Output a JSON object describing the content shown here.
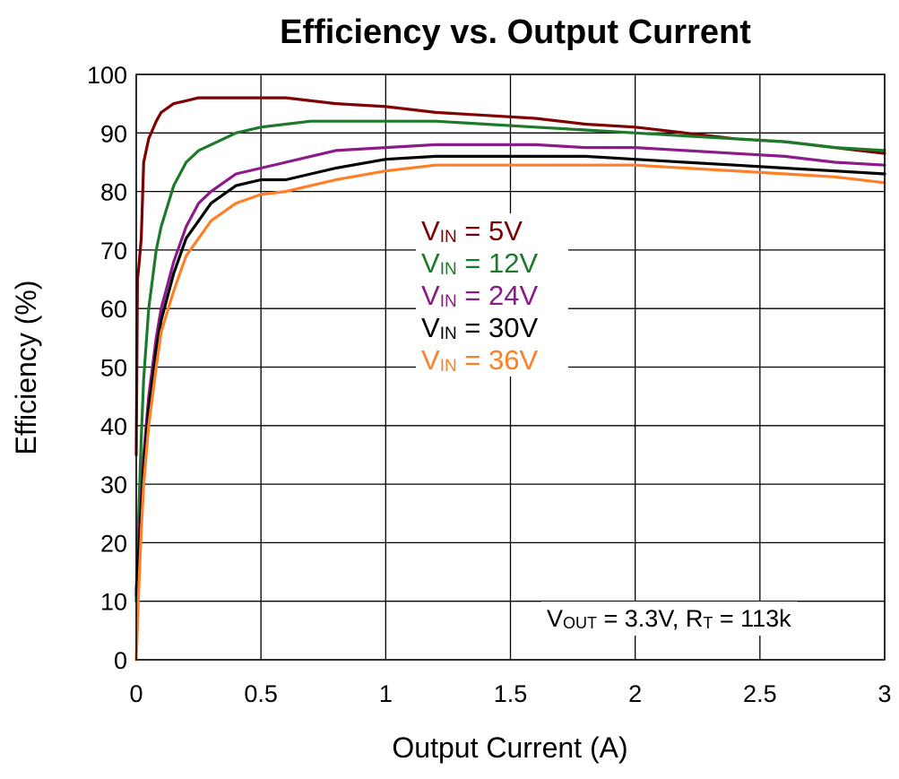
{
  "chart_data": {
    "type": "line",
    "title": "Efficiency vs. Output Current",
    "xlabel": "Output Current (A)",
    "ylabel": "Efficiency (%)",
    "xlim": [
      0,
      3
    ],
    "ylim": [
      0,
      100
    ],
    "x_ticks": [
      "0",
      "0.5",
      "1",
      "1.5",
      "2",
      "2.5",
      "3"
    ],
    "y_ticks": [
      "0",
      "10",
      "20",
      "30",
      "40",
      "50",
      "60",
      "70",
      "80",
      "90",
      "100"
    ],
    "grid": true,
    "legend_position": "center",
    "annotation": {
      "v": "V",
      "sub": "OUT",
      "mid": " = 3.3V,  R",
      "sub2": "T",
      "end": " = 113k"
    },
    "series": [
      {
        "name": "5V",
        "legend_prefix": "V",
        "legend_sub": "IN",
        "legend_eq": " =  5V",
        "color": "#7f0000",
        "x": [
          0,
          0.005,
          0.01,
          0.02,
          0.03,
          0.05,
          0.08,
          0.1,
          0.15,
          0.2,
          0.25,
          0.3,
          0.4,
          0.5,
          0.6,
          0.7,
          0.8,
          1.0,
          1.2,
          1.4,
          1.6,
          1.8,
          2.0,
          2.2,
          2.4,
          2.6,
          2.8,
          3.0
        ],
        "y": [
          35,
          65,
          67,
          72,
          85,
          89,
          92,
          93.5,
          95,
          95.5,
          96,
          96,
          96,
          96,
          96,
          95.5,
          95,
          94.5,
          93.5,
          93,
          92.5,
          91.5,
          91,
          90,
          89,
          88.5,
          87.5,
          86.5
        ]
      },
      {
        "name": "12V",
        "legend_prefix": "V",
        "legend_sub": "IN",
        "legend_eq": " = 12V",
        "color": "#1c7a2a",
        "x": [
          0,
          0.01,
          0.02,
          0.03,
          0.05,
          0.08,
          0.1,
          0.15,
          0.2,
          0.25,
          0.3,
          0.4,
          0.5,
          0.6,
          0.7,
          0.8,
          1.0,
          1.2,
          1.4,
          1.6,
          1.8,
          2.0,
          2.2,
          2.4,
          2.6,
          2.8,
          3.0
        ],
        "y": [
          10,
          25,
          38,
          48,
          60,
          70,
          74,
          81,
          85,
          87,
          88,
          90,
          91,
          91.5,
          92,
          92,
          92,
          92,
          91.5,
          91,
          90.5,
          90,
          89.5,
          89,
          88.5,
          87.5,
          87
        ]
      },
      {
        "name": "24V",
        "legend_prefix": "V",
        "legend_sub": "IN",
        "legend_eq": " = 24V",
        "color": "#8b1a8b",
        "x": [
          0,
          0.01,
          0.02,
          0.03,
          0.05,
          0.08,
          0.1,
          0.15,
          0.2,
          0.25,
          0.3,
          0.4,
          0.5,
          0.6,
          0.7,
          0.8,
          1.0,
          1.2,
          1.4,
          1.6,
          1.8,
          2.0,
          2.2,
          2.4,
          2.6,
          2.8,
          3.0
        ],
        "y": [
          12,
          20,
          28,
          35,
          45,
          55,
          60,
          68,
          74,
          78,
          80,
          83,
          84,
          85,
          86,
          87,
          87.5,
          88,
          88,
          88,
          87.5,
          87.5,
          87,
          86.5,
          86,
          85,
          84.5
        ]
      },
      {
        "name": "30V",
        "legend_prefix": "V",
        "legend_sub": "IN",
        "legend_eq": " = 30V",
        "color": "#000000",
        "x": [
          0,
          0.01,
          0.02,
          0.03,
          0.05,
          0.08,
          0.1,
          0.15,
          0.2,
          0.25,
          0.3,
          0.4,
          0.5,
          0.6,
          0.7,
          0.8,
          1.0,
          1.2,
          1.4,
          1.6,
          1.8,
          2.0,
          2.2,
          2.4,
          2.6,
          2.8,
          3.0
        ],
        "y": [
          11,
          18,
          26,
          33,
          43,
          53,
          58,
          66,
          72,
          75,
          78,
          81,
          82,
          82,
          83,
          84,
          85.5,
          86,
          86,
          86,
          86,
          85.5,
          85,
          84.5,
          84,
          83.5,
          83
        ]
      },
      {
        "name": "36V",
        "legend_prefix": "V",
        "legend_sub": "IN",
        "legend_eq": " = 36V",
        "color": "#ff7f27",
        "x": [
          0,
          0.01,
          0.02,
          0.03,
          0.05,
          0.08,
          0.1,
          0.15,
          0.2,
          0.25,
          0.3,
          0.4,
          0.5,
          0.6,
          0.7,
          0.8,
          1.0,
          1.2,
          1.4,
          1.6,
          1.8,
          2.0,
          2.2,
          2.4,
          2.6,
          2.8,
          3.0
        ],
        "y": [
          0,
          12,
          22,
          30,
          40,
          50,
          56,
          63,
          69,
          72,
          75,
          78,
          79.5,
          80,
          81,
          82,
          83.5,
          84.5,
          84.5,
          84.5,
          84.5,
          84.5,
          84,
          83.5,
          83,
          82.5,
          81.5
        ]
      }
    ]
  }
}
